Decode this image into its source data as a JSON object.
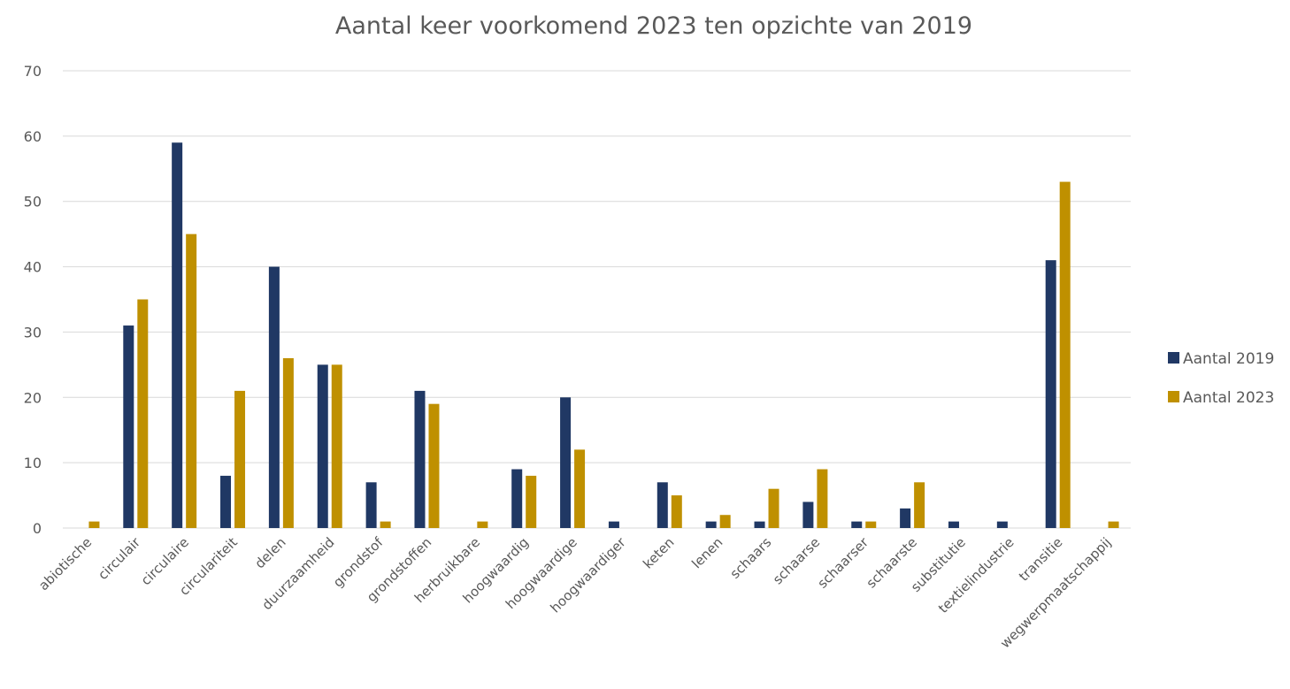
{
  "chart_data": {
    "type": "bar",
    "title": "Aantal keer voorkomend 2023 ten opzichte van 2019",
    "xlabel": "",
    "ylabel": "",
    "ylim": [
      0,
      70
    ],
    "yticks": [
      0,
      10,
      20,
      30,
      40,
      50,
      60,
      70
    ],
    "grid": true,
    "legend_position": "right",
    "categories": [
      "abiotische",
      "circulair",
      "circulaire",
      "circulariteit",
      "delen",
      "duurzaamheid",
      "grondstof",
      "grondstoffen",
      "herbruikbare",
      "hoogwaardig",
      "hoogwaardige",
      "hoogwaardiger",
      "keten",
      "lenen",
      "schaars",
      "schaarse",
      "schaarser",
      "schaarste",
      "substitutie",
      "textielindustrie",
      "transitie",
      "wegwerpmaatschappij"
    ],
    "series": [
      {
        "name": "Aantal 2019",
        "color": "#203864",
        "values": [
          0,
          31,
          59,
          8,
          40,
          25,
          7,
          21,
          0,
          9,
          20,
          1,
          7,
          1,
          1,
          4,
          1,
          3,
          1,
          1,
          41,
          0
        ]
      },
      {
        "name": "Aantal 2023",
        "color": "#BF9000",
        "values": [
          1,
          35,
          45,
          21,
          26,
          25,
          1,
          19,
          1,
          8,
          12,
          0,
          5,
          2,
          6,
          9,
          1,
          7,
          0,
          0,
          53,
          1
        ]
      }
    ]
  }
}
